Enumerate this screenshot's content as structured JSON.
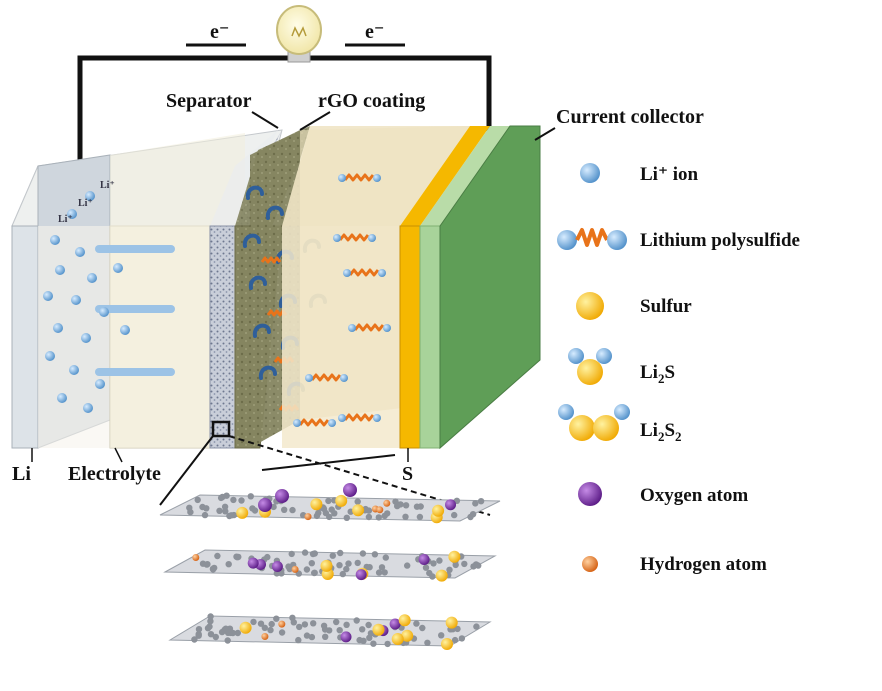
{
  "circuit": {
    "electron_left": "e⁻",
    "electron_right": "e⁻"
  },
  "labels": {
    "separator": "Separator",
    "rgo_coating": "rGO coating",
    "current_collector": "Current collector",
    "li": "Li",
    "electrolyte": "Electrolyte",
    "s": "S",
    "li_ion_tags": [
      "Li⁺",
      "Li⁺",
      "Li⁺"
    ]
  },
  "legend": [
    {
      "key": "li_ion",
      "label": "Li⁺ ion",
      "icon": "li-ion-icon",
      "color": "#6fa8dc"
    },
    {
      "key": "polysulfide",
      "label": "Lithium polysulfide",
      "icon": "polysulfide-icon",
      "color": "#e8731a"
    },
    {
      "key": "sulfur",
      "label": "Sulfur",
      "icon": "sulfur-icon",
      "color": "#f5c400"
    },
    {
      "key": "li2s",
      "label_main": "Li",
      "sub1": "2",
      "label_tail": "S",
      "sub2": "",
      "icon": "li2s-icon"
    },
    {
      "key": "li2s2",
      "label_main": "Li",
      "sub1": "2",
      "label_tail": "S",
      "sub2": "2",
      "icon": "li2s2-icon"
    },
    {
      "key": "oxygen",
      "label": "Oxygen atom",
      "icon": "oxygen-atom-icon",
      "color": "#7b2fa3"
    },
    {
      "key": "hydrogen",
      "label": "Hydrogen atom",
      "icon": "hydrogen-atom-icon",
      "color": "#e07a2a"
    }
  ],
  "colors": {
    "anode": "#dfe4e8",
    "electrolyte": "#f4f1e4",
    "separator": "#9aa3b5",
    "rgo": "#8a8a66",
    "cathode": "#efe2bf",
    "sulfur_layer": "#f5b800",
    "collector_front": "#a8d39a",
    "collector_side": "#5f9e57",
    "wire": "#111111"
  }
}
